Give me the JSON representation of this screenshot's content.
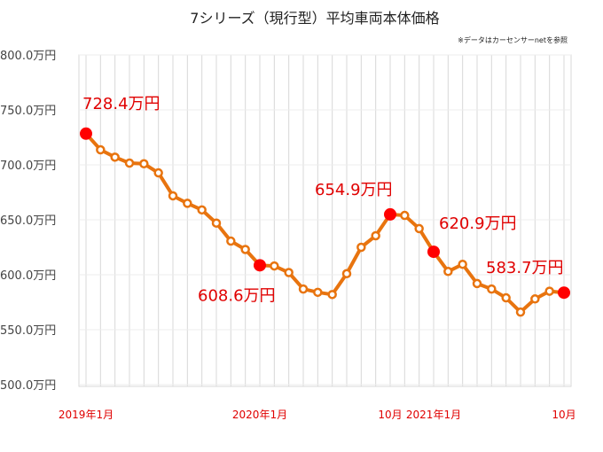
{
  "chart_data": {
    "type": "line",
    "title": "7シリーズ（現行型）平均車両本体価格",
    "note": "※データはカーセンサーnetを参照",
    "xlabel": "",
    "ylabel": "",
    "ylim": [
      500,
      800
    ],
    "yticks": [
      500,
      550,
      600,
      650,
      700,
      750,
      800
    ],
    "ytick_labels": [
      "500.0万円",
      "550.0万円",
      "600.0万円",
      "650.0万円",
      "700.0万円",
      "750.0万円",
      "800.0万円"
    ],
    "x_labels": [
      {
        "index": 0,
        "label": "2019年1月"
      },
      {
        "index": 12,
        "label": "2020年1月"
      },
      {
        "index": 21,
        "label": "10月"
      },
      {
        "index": 24,
        "label": "2021年1月"
      },
      {
        "index": 33,
        "label": "10月"
      }
    ],
    "series": [
      {
        "name": "平均車両本体価格",
        "color": "#E8740F",
        "values": [
          728.4,
          713.7,
          707,
          701.6,
          701,
          692.7,
          671.8,
          665,
          659,
          647,
          630.6,
          623,
          608.6,
          608,
          602,
          587,
          584,
          582,
          601,
          625,
          635.5,
          654.9,
          654,
          642,
          620.9,
          603,
          609.5,
          592,
          587,
          579,
          566,
          578,
          585,
          583.7
        ]
      }
    ],
    "annotations": [
      {
        "index": 0,
        "label": "728.4万円"
      },
      {
        "index": 12,
        "label": "608.6万円"
      },
      {
        "index": 21,
        "label": "654.9万円"
      },
      {
        "index": 24,
        "label": "620.9万円"
      },
      {
        "index": 33,
        "label": "583.7万円"
      }
    ],
    "grid": true
  }
}
